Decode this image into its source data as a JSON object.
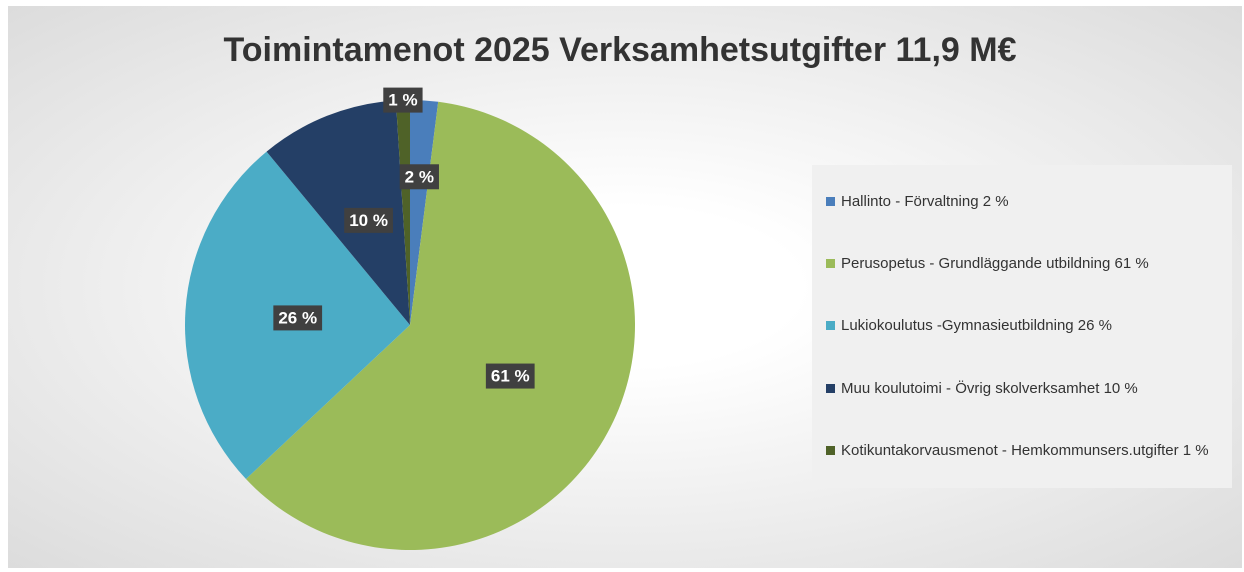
{
  "chart_data": {
    "type": "pie",
    "title": "Toimintamenot 2025 Verksamhetsutgifter 11,9 M€",
    "categories": [
      "Hallinto - Förvaltning 2 %",
      "Perusopetus - Grundläggande utbildning 61 %",
      "Lukiokoulutus -Gymnasieutbildning 26 %",
      "Muu koulutoimi - Övrig skolverksamhet 10 %",
      "Kotikuntakorvausmenot - Hemkommunsers.utgifter 1 %"
    ],
    "values": [
      2,
      61,
      26,
      10,
      1
    ],
    "value_labels": [
      "2 %",
      "61 %",
      "26 %",
      "10 %",
      "1 %"
    ],
    "colors": [
      "#4a7ebb",
      "#9bbb59",
      "#4bacc6",
      "#243f66",
      "#4f6228"
    ],
    "legend": "right"
  }
}
